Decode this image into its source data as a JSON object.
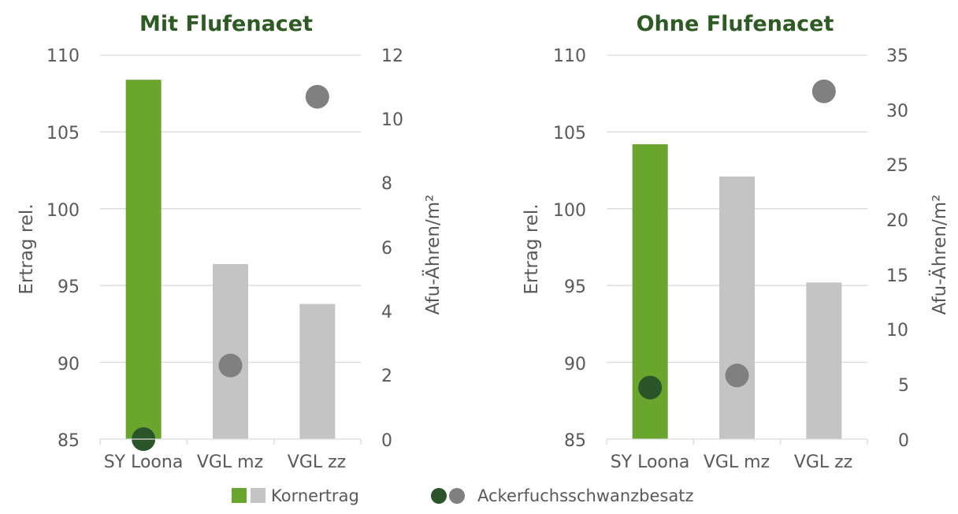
{
  "colors": {
    "title": "#2e5a23",
    "bar_highlight": "#6aa52e",
    "bar_other": "#c4c4c4",
    "dot_highlight": "#2b5428",
    "dot_other": "#808080",
    "grid": "#d9d9d9",
    "text": "#595959"
  },
  "legend": {
    "bars_label": "Kornertrag",
    "dots_label": "Ackerfuchsschwanzbesatz"
  },
  "chart_data": [
    {
      "type": "bar",
      "title": "Mit Flufenacet",
      "categories": [
        "SY Loona",
        "VGL mz",
        "VGL zz"
      ],
      "series": [
        {
          "name": "Kornertrag",
          "axis": "left",
          "values": [
            108.4,
            96.4,
            93.8
          ]
        },
        {
          "name": "Ackerfuchsschwanzbesatz",
          "axis": "right",
          "kind": "scatter",
          "values": [
            0.0,
            2.3,
            10.7
          ]
        }
      ],
      "ylabel": "Ertrag rel.",
      "ylabel_right": "Afu-Ähren/m²",
      "ylim": [
        85,
        110
      ],
      "yticks": [
        "110",
        "105",
        "100",
        "95",
        "90",
        "85"
      ],
      "ylim_right": [
        0,
        12
      ],
      "yticks_right": [
        "12",
        "10",
        "8",
        "6",
        "4",
        "2",
        "0"
      ],
      "highlight_index": 0,
      "grid": true
    },
    {
      "type": "bar",
      "title": "Ohne Flufenacet",
      "categories": [
        "SY Loona",
        "VGL mz",
        "VGL zz"
      ],
      "series": [
        {
          "name": "Kornertrag",
          "axis": "left",
          "values": [
            104.2,
            102.1,
            95.2
          ]
        },
        {
          "name": "Ackerfuchsschwanzbesatz",
          "axis": "right",
          "kind": "scatter",
          "values": [
            4.7,
            5.8,
            31.7
          ]
        }
      ],
      "ylabel": "Ertrag rel.",
      "ylabel_right": "Afu-Ähren/m²",
      "ylim": [
        85,
        110
      ],
      "yticks": [
        "110",
        "105",
        "100",
        "95",
        "90",
        "85"
      ],
      "ylim_right": [
        0,
        35
      ],
      "yticks_right": [
        "35",
        "30",
        "25",
        "20",
        "15",
        "10",
        "5",
        "0"
      ],
      "highlight_index": 0,
      "grid": true
    }
  ]
}
